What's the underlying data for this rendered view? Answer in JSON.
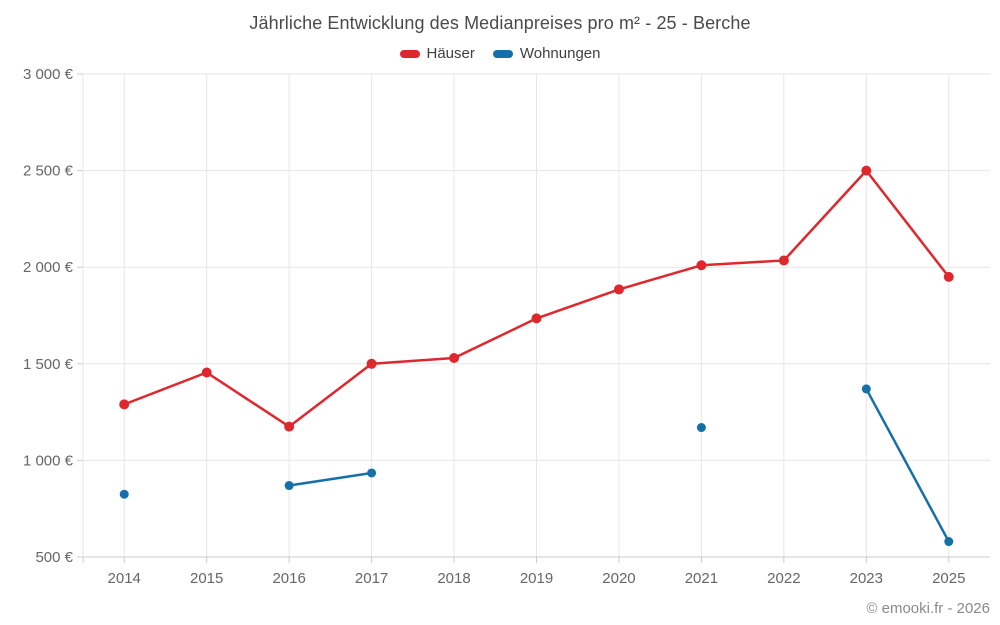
{
  "chart_data": {
    "type": "line",
    "title": "Jährliche Entwicklung des Medianpreises pro m² - 25 - Berche",
    "categories": [
      "2014",
      "2015",
      "2016",
      "2017",
      "2018",
      "2019",
      "2020",
      "2021",
      "2022",
      "2023",
      "2025"
    ],
    "series": [
      {
        "name": "Häuser",
        "color": "#df282e",
        "values": [
          1290,
          1455,
          1175,
          1500,
          1530,
          1735,
          1885,
          2010,
          2035,
          2500,
          1950
        ]
      },
      {
        "name": "Wohnungen",
        "color": "#1670a8",
        "values": [
          825,
          null,
          870,
          935,
          null,
          null,
          null,
          1170,
          null,
          1370,
          580
        ]
      }
    ],
    "xlabel": "",
    "ylabel": "",
    "ylim": [
      500,
      3000
    ],
    "ytick_step": 500,
    "y_tick_labels": [
      "500 €",
      "1 000 €",
      "1 500 €",
      "2 000 €",
      "2 500 €",
      "3 000 €"
    ],
    "grid": true,
    "legend_position": "top",
    "grid_color": "#e6e6e6",
    "axis_color": "#cccccc",
    "label_color": "#666666"
  },
  "footer": {
    "copyright": "© emooki.fr - 2026"
  }
}
